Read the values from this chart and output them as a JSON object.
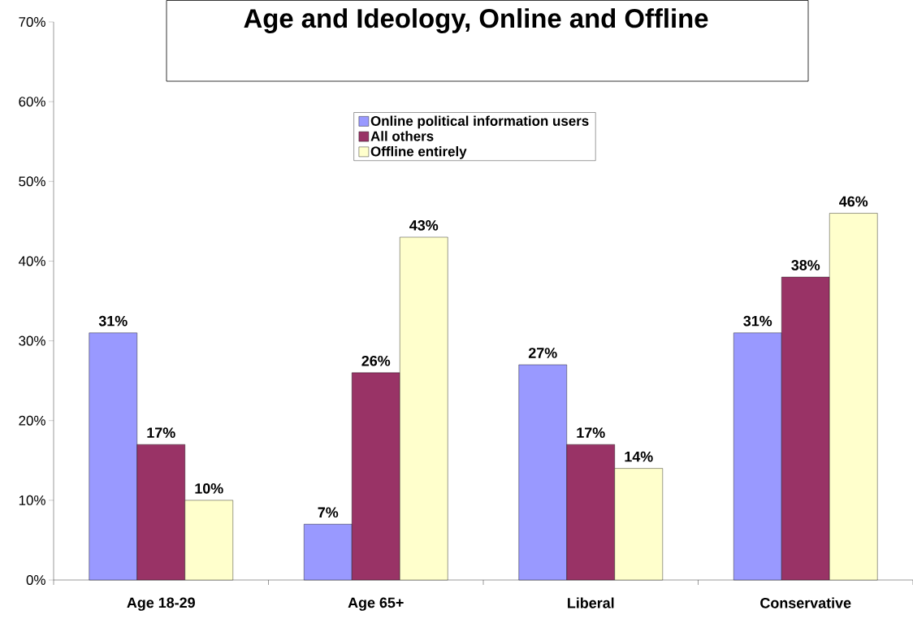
{
  "chart_data": {
    "type": "bar",
    "title": "Age and Ideology, Online and Offline",
    "categories": [
      "Age 18-29",
      "Age 65+",
      "Liberal",
      "Conservative"
    ],
    "series": [
      {
        "name": "Online political information users",
        "color": "#9999ff",
        "values": [
          31,
          7,
          27,
          31
        ],
        "value_labels": [
          "31%",
          "7%",
          "27%",
          "31%"
        ]
      },
      {
        "name": "All others",
        "color": "#993366",
        "values": [
          17,
          26,
          17,
          38
        ],
        "value_labels": [
          "17%",
          "26%",
          "17%",
          "38%"
        ]
      },
      {
        "name": "Offline entirely",
        "color": "#ffffcc",
        "values": [
          10,
          43,
          14,
          46
        ],
        "value_labels": [
          "10%",
          "43%",
          "14%",
          "46%"
        ]
      }
    ],
    "ylim": [
      0,
      70
    ],
    "yticks": [
      {
        "value": 0,
        "label": "0%"
      },
      {
        "value": 10,
        "label": "10%"
      },
      {
        "value": 20,
        "label": "20%"
      },
      {
        "value": 30,
        "label": "30%"
      },
      {
        "value": 40,
        "label": "40%"
      },
      {
        "value": 50,
        "label": "50%"
      },
      {
        "value": 60,
        "label": "60%"
      },
      {
        "value": 70,
        "label": "70%"
      }
    ],
    "legend": "top"
  }
}
